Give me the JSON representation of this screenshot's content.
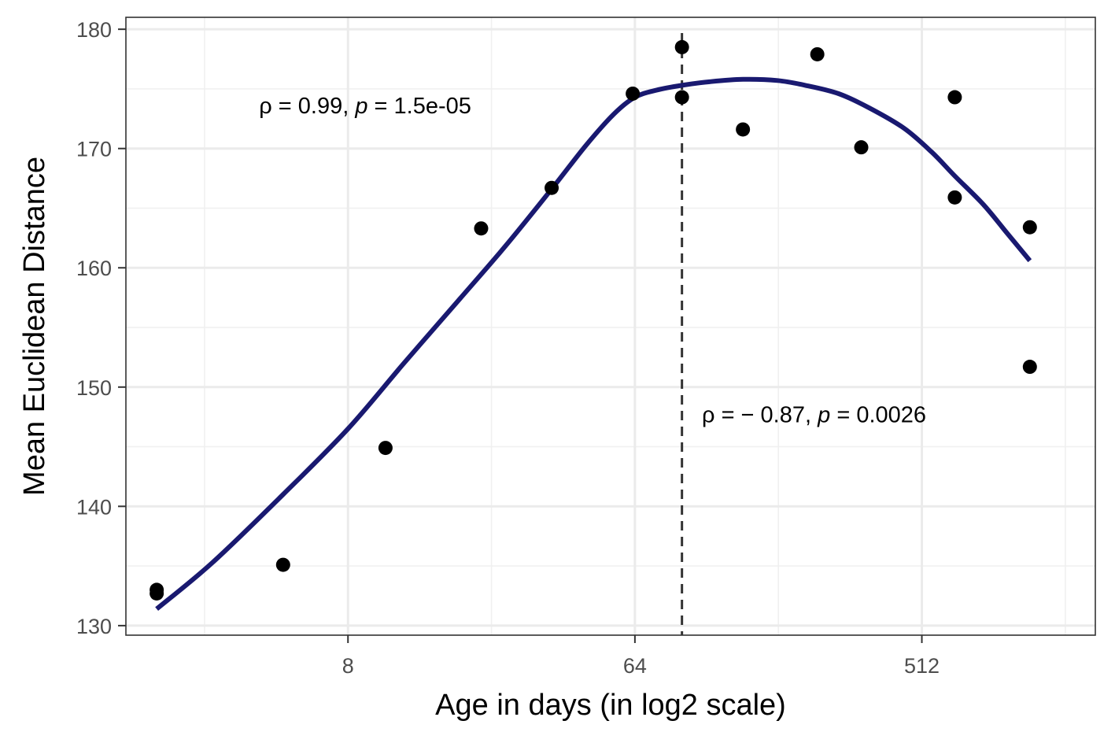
{
  "chart_data": {
    "type": "scatter",
    "xlabel": "Age in days (in log2 scale)",
    "ylabel": "Mean Euclidean Distance",
    "x_scale": "log2",
    "x_ticks": [
      {
        "value": 8,
        "label": "8"
      },
      {
        "value": 64,
        "label": "64"
      },
      {
        "value": 512,
        "label": "512"
      }
    ],
    "y_ticks": [
      {
        "value": 130,
        "label": "130"
      },
      {
        "value": 140,
        "label": "140"
      },
      {
        "value": 150,
        "label": "150"
      },
      {
        "value": 160,
        "label": "160"
      },
      {
        "value": 170,
        "label": "170"
      },
      {
        "value": 180,
        "label": "180"
      }
    ],
    "xlim": [
      1.6,
      1800
    ],
    "ylim": [
      129.2,
      181.0
    ],
    "grid": true,
    "points": [
      {
        "x": 2,
        "y": 133.0
      },
      {
        "x": 2,
        "y": 132.7
      },
      {
        "x": 5,
        "y": 135.1
      },
      {
        "x": 10.5,
        "y": 144.9
      },
      {
        "x": 21,
        "y": 163.3
      },
      {
        "x": 35,
        "y": 166.7
      },
      {
        "x": 63,
        "y": 174.6
      },
      {
        "x": 90,
        "y": 178.5
      },
      {
        "x": 90,
        "y": 174.3
      },
      {
        "x": 140,
        "y": 171.6
      },
      {
        "x": 240,
        "y": 177.9
      },
      {
        "x": 330,
        "y": 170.1
      },
      {
        "x": 650,
        "y": 174.3
      },
      {
        "x": 650,
        "y": 165.9
      },
      {
        "x": 1120,
        "y": 163.4
      },
      {
        "x": 1120,
        "y": 151.7
      }
    ],
    "smooth_line": {
      "color": "#191970",
      "x": [
        2,
        3,
        5,
        8,
        12,
        18,
        25,
        35,
        45,
        55,
        64,
        75,
        90,
        110,
        140,
        180,
        220,
        280,
        350,
        450,
        550,
        650,
        800,
        950,
        1120
      ],
      "y": [
        131.4,
        135.3,
        141.0,
        146.5,
        152.0,
        157.4,
        161.8,
        166.6,
        170.3,
        172.9,
        174.3,
        174.9,
        175.3,
        175.6,
        175.8,
        175.7,
        175.3,
        174.6,
        173.4,
        171.7,
        169.7,
        167.7,
        165.3,
        162.9,
        160.6
      ]
    },
    "vline": {
      "x": 90,
      "style": "dashed",
      "color": "#333333"
    },
    "annotations": [
      {
        "x": 4.2,
        "y": 173.6,
        "text_rho": "ρ = 0.99, ",
        "text_p": "p",
        "text_rest": " = 1.5e-05"
      },
      {
        "x": 104,
        "y": 147.7,
        "text_rho": "ρ = − 0.87, ",
        "text_p": "p",
        "text_rest": " = 0.0026"
      }
    ],
    "point_color": "#000000"
  }
}
